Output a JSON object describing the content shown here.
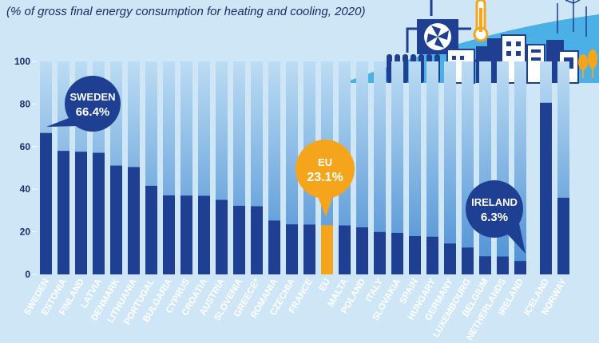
{
  "subtitle": "(% of gross final energy consumption for heating and cooling, 2020)",
  "colors": {
    "background": "#cfe6f7",
    "track_top": "#bcdcf3",
    "track_bottom": "#4b8fd4",
    "bar": "#1f3f93",
    "eu_bar": "#f4a51c",
    "bubble": "#1f3f93",
    "eu_bubble": "#f4a51c",
    "illustration": "#1f3f93",
    "hill": "#4ab0e6"
  },
  "callouts": [
    {
      "country": "SWEDEN",
      "name": "SWEDEN",
      "value": "66.4%"
    },
    {
      "country": "EU",
      "name": "EU",
      "value": "23.1%"
    },
    {
      "country": "IRELAND",
      "name": "IRELAND",
      "value": "6.3%"
    }
  ],
  "chart_data": {
    "type": "bar",
    "title": "",
    "xlabel": "",
    "ylabel": "",
    "ylim": [
      0,
      100
    ],
    "yticks": [
      0,
      20,
      40,
      60,
      80,
      100
    ],
    "grid": false,
    "categories": [
      "SWEDEN",
      "ESTONIA",
      "FINLAND",
      "LATVIA",
      "DENMARK",
      "LITHUANIA",
      "PORTUGAL",
      "BULGARIA",
      "CYPRUS",
      "CROATIA",
      "AUSTRIA",
      "SLOVENIA",
      "GREECE*",
      "ROMANIA",
      "CZECHIA",
      "FRANCE",
      "EU",
      "MALTA",
      "POLAND",
      "ITALY",
      "SLOVAKIA",
      "SPAIN",
      "HUNGARY",
      "GERMANY",
      "LUXEMBOURG",
      "BELGIUM",
      "NETHERLANDS",
      "IRELAND",
      "ICELAND",
      "NORWAY"
    ],
    "values": [
      66.4,
      58.0,
      57.6,
      57.1,
      51.1,
      50.4,
      41.6,
      37.1,
      37.0,
      36.9,
      35.0,
      32.2,
      32.0,
      25.3,
      23.5,
      23.4,
      23.1,
      23.0,
      22.1,
      19.9,
      19.5,
      18.0,
      17.7,
      14.5,
      12.6,
      8.5,
      8.4,
      6.3,
      80.6,
      36.0
    ],
    "highlight": "EU"
  }
}
